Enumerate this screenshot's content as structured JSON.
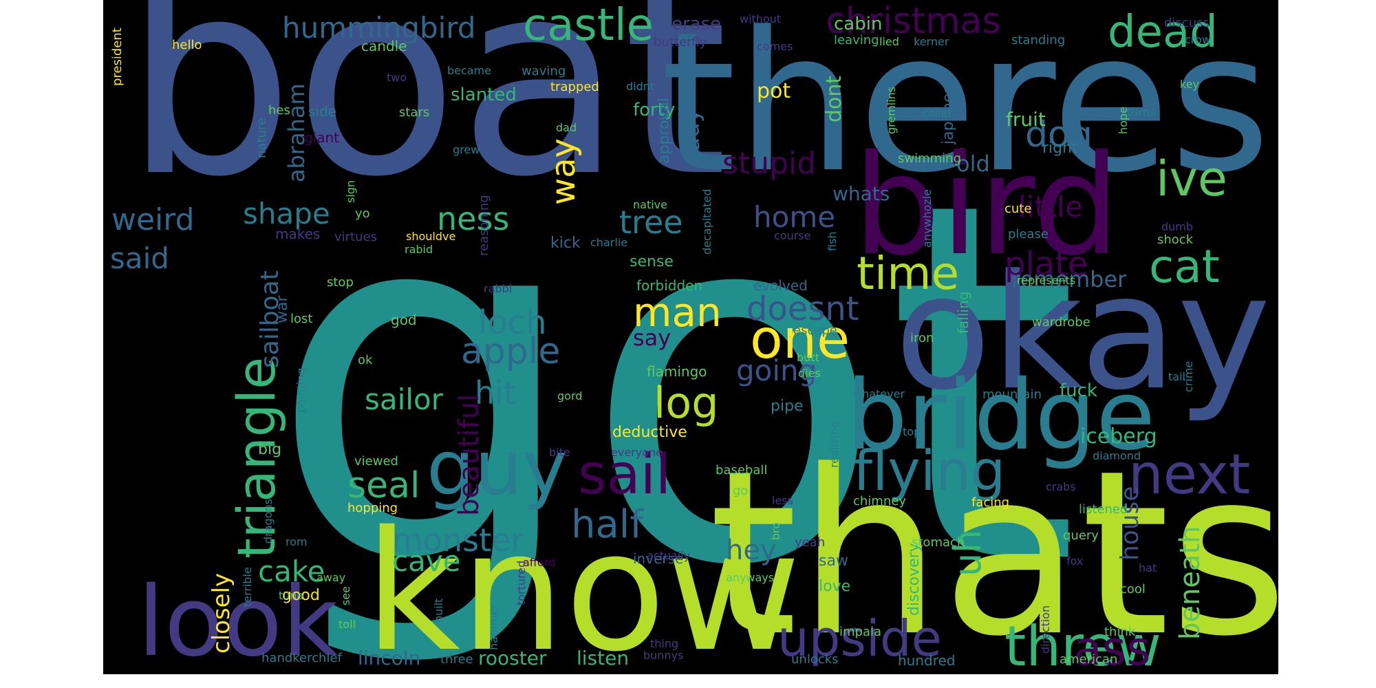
{
  "palette": {
    "c1": "#3b528b",
    "c2": "#21908d",
    "c3": "#b5de2b",
    "c4": "#440154",
    "c5": "#31688e",
    "c6": "#5ec962",
    "c7": "#fde725",
    "c8": "#443a83",
    "c9": "#287d8e",
    "c10": "#35b779"
  },
  "words": [
    {
      "text": "got",
      "color": "c2"
    },
    {
      "text": "boat",
      "color": "c1"
    },
    {
      "text": "theres",
      "color": "c5"
    },
    {
      "text": "thats",
      "color": "c3"
    },
    {
      "text": "know",
      "color": "c3"
    },
    {
      "text": "okay",
      "color": "c1"
    },
    {
      "text": "bird",
      "color": "c4"
    },
    {
      "text": "bridge",
      "color": "c9"
    },
    {
      "text": "look",
      "color": "c8"
    },
    {
      "text": "guy",
      "color": "c9"
    },
    {
      "text": "sail",
      "color": "c4"
    },
    {
      "text": "flying",
      "color": "c9"
    },
    {
      "text": "threw",
      "color": "c10"
    },
    {
      "text": "upside",
      "color": "c8"
    },
    {
      "text": "ass",
      "color": "c4"
    },
    {
      "text": "next",
      "color": "c8"
    },
    {
      "text": "triangle",
      "color": "c10"
    },
    {
      "text": "castle",
      "color": "c10"
    },
    {
      "text": "hummingbird",
      "color": "c5"
    },
    {
      "text": "christmas",
      "color": "c4"
    },
    {
      "text": "dead",
      "color": "c10"
    },
    {
      "text": "dog",
      "color": "c5"
    },
    {
      "text": "ive",
      "color": "c6"
    },
    {
      "text": "cat",
      "color": "c10"
    },
    {
      "text": "time",
      "color": "c3"
    },
    {
      "text": "man",
      "color": "c7"
    },
    {
      "text": "one",
      "color": "c7"
    },
    {
      "text": "log",
      "color": "c3"
    },
    {
      "text": "half",
      "color": "c5"
    },
    {
      "text": "monster",
      "color": "c9"
    },
    {
      "text": "apple",
      "color": "c5"
    },
    {
      "text": "loch",
      "color": "c9"
    },
    {
      "text": "hit",
      "color": "c9"
    },
    {
      "text": "seal",
      "color": "c10"
    },
    {
      "text": "sailor",
      "color": "c10"
    },
    {
      "text": "cave",
      "color": "c10"
    },
    {
      "text": "cake",
      "color": "c10"
    },
    {
      "text": "closely",
      "color": "c7"
    },
    {
      "text": "weird",
      "color": "c5"
    },
    {
      "text": "said",
      "color": "c5"
    },
    {
      "text": "shape",
      "color": "c9"
    },
    {
      "text": "tree",
      "color": "c9"
    },
    {
      "text": "ness",
      "color": "c10"
    },
    {
      "text": "way",
      "color": "c7"
    },
    {
      "text": "stupid",
      "color": "c4"
    },
    {
      "text": "home",
      "color": "c1"
    },
    {
      "text": "plate",
      "color": "c4"
    },
    {
      "text": "little",
      "color": "c4"
    },
    {
      "text": "doesnt",
      "color": "c1"
    },
    {
      "text": "remember",
      "color": "c5"
    },
    {
      "text": "going",
      "color": "c1"
    },
    {
      "text": "say",
      "color": "c4"
    },
    {
      "text": "beautiful",
      "color": "c4"
    },
    {
      "text": "sailboat",
      "color": "c5"
    },
    {
      "text": "abraham",
      "color": "c5"
    },
    {
      "text": "hey",
      "color": "c5"
    },
    {
      "text": "uh",
      "color": "c10"
    },
    {
      "text": "beneath",
      "color": "c6"
    },
    {
      "text": "house",
      "color": "c1"
    },
    {
      "text": "iceberg",
      "color": "c10"
    },
    {
      "text": "lincoln",
      "color": "c5"
    },
    {
      "text": "rooster",
      "color": "c10"
    },
    {
      "text": "listen",
      "color": "c10"
    },
    {
      "text": "lady",
      "color": "c5"
    },
    {
      "text": "old",
      "color": "c5"
    },
    {
      "text": "pot",
      "color": "c7"
    },
    {
      "text": "dont",
      "color": "c6"
    },
    {
      "text": "whats",
      "color": "c5"
    },
    {
      "text": "erase",
      "color": "c8"
    },
    {
      "text": "cabin",
      "color": "c6"
    },
    {
      "text": "candle",
      "color": "c6"
    },
    {
      "text": "forty",
      "color": "c10"
    },
    {
      "text": "slanted",
      "color": "c10"
    },
    {
      "text": "approval",
      "color": "c9"
    },
    {
      "text": "fruit",
      "color": "c6"
    },
    {
      "text": "japanese",
      "color": "c5"
    },
    {
      "text": "fuck",
      "color": "c10"
    },
    {
      "text": "deductive",
      "color": "c7"
    },
    {
      "text": "evolved",
      "color": "c5"
    },
    {
      "text": "war",
      "color": "c5"
    },
    {
      "text": "god",
      "color": "c6"
    },
    {
      "text": "kick",
      "color": "c5"
    },
    {
      "text": "sense",
      "color": "c10"
    },
    {
      "text": "pipe",
      "color": "c9"
    },
    {
      "text": "forbidden",
      "color": "c10"
    },
    {
      "text": "flamingo",
      "color": "c6"
    },
    {
      "text": "good",
      "color": "c7"
    },
    {
      "text": "big",
      "color": "c6"
    },
    {
      "text": "saw",
      "color": "c5"
    },
    {
      "text": "inverse",
      "color": "c5"
    },
    {
      "text": "love",
      "color": "c10"
    },
    {
      "text": "discovery",
      "color": "c10"
    },
    {
      "text": "falling",
      "color": "c10"
    },
    {
      "text": "leaving",
      "color": "c10"
    },
    {
      "text": "giant",
      "color": "c4"
    },
    {
      "text": "side",
      "color": "c9"
    },
    {
      "text": "hes",
      "color": "c6"
    },
    {
      "text": "stars",
      "color": "c6"
    },
    {
      "text": "dad",
      "color": "c6"
    },
    {
      "text": "grew",
      "color": "c9"
    },
    {
      "text": "nature",
      "color": "c9"
    },
    {
      "text": "yo",
      "color": "c6"
    },
    {
      "text": "makes",
      "color": "c8"
    },
    {
      "text": "virtues",
      "color": "c8"
    },
    {
      "text": "shouldve",
      "color": "c7"
    },
    {
      "text": "rabid",
      "color": "c6"
    },
    {
      "text": "reasoning",
      "color": "c8"
    },
    {
      "text": "charlie",
      "color": "c9"
    },
    {
      "text": "native",
      "color": "c6"
    },
    {
      "text": "decapitated",
      "color": "c9"
    },
    {
      "text": "course",
      "color": "c8"
    },
    {
      "text": "fish",
      "color": "c9"
    },
    {
      "text": "anywhozle",
      "color": "c9"
    },
    {
      "text": "dumb",
      "color": "c8"
    },
    {
      "text": "shock",
      "color": "c6"
    },
    {
      "text": "cute",
      "color": "c7"
    },
    {
      "text": "please",
      "color": "c9"
    },
    {
      "text": "represents",
      "color": "c6"
    },
    {
      "text": "stop",
      "color": "c6"
    },
    {
      "text": "lost",
      "color": "c6"
    },
    {
      "text": "rabbi",
      "color": "c8"
    },
    {
      "text": "iron",
      "color": "c6"
    },
    {
      "text": "escape",
      "color": "c9"
    },
    {
      "text": "wardrobe",
      "color": "c6"
    },
    {
      "text": "butt",
      "color": "c6"
    },
    {
      "text": "dies",
      "color": "c6"
    },
    {
      "text": "whatever",
      "color": "c9"
    },
    {
      "text": "mountain",
      "color": "c9"
    },
    {
      "text": "tail",
      "color": "c9"
    },
    {
      "text": "crime",
      "color": "c9"
    },
    {
      "text": "ok",
      "color": "c6"
    },
    {
      "text": "gord",
      "color": "c6"
    },
    {
      "text": "pointing",
      "color": "c9"
    },
    {
      "text": "top",
      "color": "c9"
    },
    {
      "text": "diamond",
      "color": "c9"
    },
    {
      "text": "realizing",
      "color": "c9"
    },
    {
      "text": "viewed",
      "color": "c6"
    },
    {
      "text": "bite",
      "color": "c8"
    },
    {
      "text": "everyone",
      "color": "c8"
    },
    {
      "text": "baseball",
      "color": "c6"
    },
    {
      "text": "go",
      "color": "c6"
    },
    {
      "text": "less",
      "color": "c8"
    },
    {
      "text": "crabs",
      "color": "c8"
    },
    {
      "text": "chimney",
      "color": "c6"
    },
    {
      "text": "facing",
      "color": "c7"
    },
    {
      "text": "listened",
      "color": "c10"
    },
    {
      "text": "hopping",
      "color": "c7"
    },
    {
      "text": "dragons",
      "color": "c9"
    },
    {
      "text": "rom",
      "color": "c9"
    },
    {
      "text": "terrible",
      "color": "c9"
    },
    {
      "text": "afford",
      "color": "c4"
    },
    {
      "text": "actually",
      "color": "c8"
    },
    {
      "text": "bro",
      "color": "c6"
    },
    {
      "text": "yeah",
      "color": "c8"
    },
    {
      "text": "stomach",
      "color": "c6"
    },
    {
      "text": "query",
      "color": "c6"
    },
    {
      "text": "fox",
      "color": "c8"
    },
    {
      "text": "hat",
      "color": "c8"
    },
    {
      "text": "cool",
      "color": "c6"
    },
    {
      "text": "anyways",
      "color": "c6"
    },
    {
      "text": "away",
      "color": "c6"
    },
    {
      "text": "tuna",
      "color": "c6"
    },
    {
      "text": "see",
      "color": "c6"
    },
    {
      "text": "toll",
      "color": "c6"
    },
    {
      "text": "built",
      "color": "c9"
    },
    {
      "text": "hammer",
      "color": "c9"
    },
    {
      "text": "tortured",
      "color": "c8"
    },
    {
      "text": "direction",
      "color": "c8"
    },
    {
      "text": "think",
      "color": "c6"
    },
    {
      "text": "impala",
      "color": "c6"
    },
    {
      "text": "thing",
      "color": "c8"
    },
    {
      "text": "handkerchief",
      "color": "c9"
    },
    {
      "text": "three",
      "color": "c9"
    },
    {
      "text": "bunnys",
      "color": "c8"
    },
    {
      "text": "unlocks",
      "color": "c9"
    },
    {
      "text": "hundred",
      "color": "c9"
    },
    {
      "text": "american",
      "color": "c6"
    },
    {
      "text": "president",
      "color": "c7"
    },
    {
      "text": "hello",
      "color": "c7"
    },
    {
      "text": "two",
      "color": "c8"
    },
    {
      "text": "became",
      "color": "c9"
    },
    {
      "text": "waving",
      "color": "c9"
    },
    {
      "text": "trapped",
      "color": "c7"
    },
    {
      "text": "didnt",
      "color": "c9"
    },
    {
      "text": "butterfly",
      "color": "c8"
    },
    {
      "text": "comes",
      "color": "c8"
    },
    {
      "text": "without",
      "color": "c8"
    },
    {
      "text": "lied",
      "color": "c6"
    },
    {
      "text": "kerner",
      "color": "c9"
    },
    {
      "text": "standing",
      "color": "c9"
    },
    {
      "text": "discuss",
      "color": "c8"
    },
    {
      "text": "crow",
      "color": "c9"
    },
    {
      "text": "key",
      "color": "c6"
    },
    {
      "text": "hope",
      "color": "c6"
    },
    {
      "text": "turns",
      "color": "c9"
    },
    {
      "text": "collar",
      "color": "c9"
    },
    {
      "text": "gremlins",
      "color": "c6"
    },
    {
      "text": "right",
      "color": "c9"
    },
    {
      "text": "swimming",
      "color": "c6"
    },
    {
      "text": "sign",
      "color": "c6"
    }
  ]
}
